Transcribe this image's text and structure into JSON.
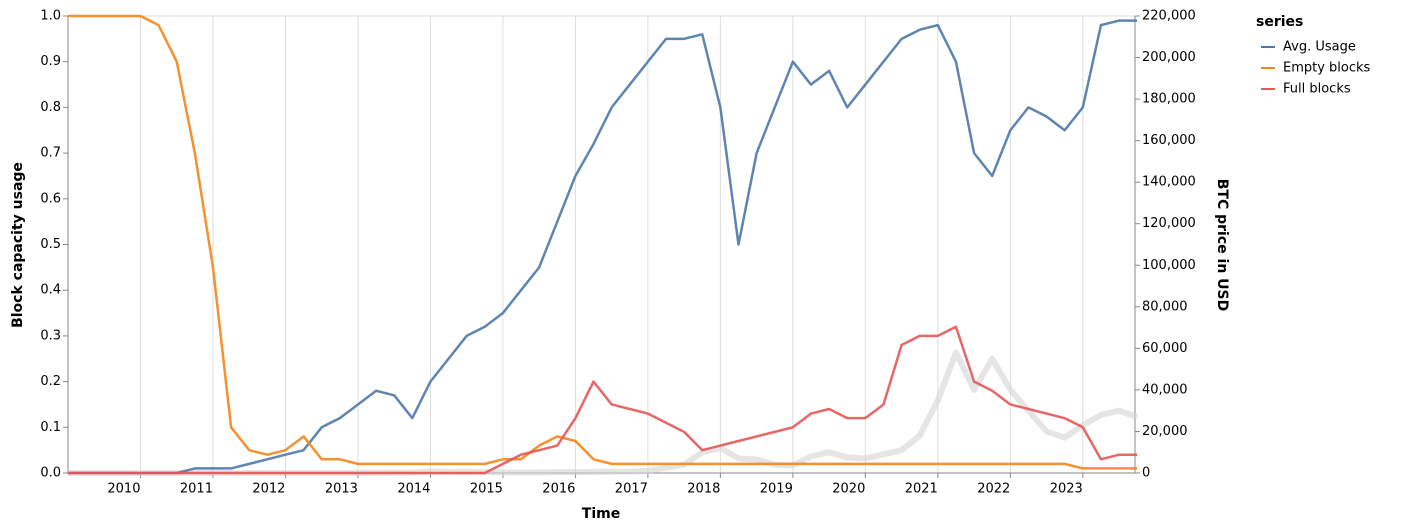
{
  "chart_data": {
    "type": "line",
    "x_label": "Time",
    "y_label": "Block capacity usage",
    "y2_label": "BTC price in USD",
    "legend_title": "series",
    "legend_position": "right",
    "grid": "x",
    "xlim": [
      2009,
      2023.72
    ],
    "xticks": [
      2010,
      2011,
      2012,
      2013,
      2014,
      2015,
      2016,
      2017,
      2018,
      2019,
      2020,
      2021,
      2022,
      2023
    ],
    "ylim": [
      0,
      1
    ],
    "yticks": [
      {
        "value": 0,
        "label": "0.0"
      },
      0.1,
      0.2,
      0.3,
      0.4,
      0.5,
      0.6,
      0.7,
      0.8,
      0.9,
      {
        "value": 1,
        "label": "1.0"
      }
    ],
    "y2lim": [
      0,
      220000
    ],
    "y2ticks": [
      0,
      {
        "value": 20000,
        "label": "20,000"
      },
      {
        "value": 40000,
        "label": "40,000"
      },
      {
        "value": 60000,
        "label": "60,000"
      },
      {
        "value": 80000,
        "label": "80,000"
      },
      {
        "value": 100000,
        "label": "100,000"
      },
      {
        "value": 120000,
        "label": "120,000"
      },
      {
        "value": 140000,
        "label": "140,000"
      },
      {
        "value": 160000,
        "label": "160,000"
      },
      {
        "value": 180000,
        "label": "180,000"
      },
      {
        "value": 200000,
        "label": "200,000"
      },
      {
        "value": 220000,
        "label": "220,000"
      }
    ],
    "x": [
      2009,
      2009.25,
      2009.5,
      2009.75,
      2010,
      2010.25,
      2010.5,
      2010.75,
      2011,
      2011.25,
      2011.5,
      2011.75,
      2012,
      2012.25,
      2012.5,
      2012.75,
      2013,
      2013.25,
      2013.5,
      2013.75,
      2014,
      2014.25,
      2014.5,
      2014.75,
      2015,
      2015.25,
      2015.5,
      2015.75,
      2016,
      2016.25,
      2016.5,
      2016.75,
      2017,
      2017.25,
      2017.5,
      2017.75,
      2018,
      2018.25,
      2018.5,
      2018.75,
      2019,
      2019.25,
      2019.5,
      2019.75,
      2020,
      2020.25,
      2020.5,
      2020.75,
      2021,
      2021.25,
      2021.5,
      2021.75,
      2022,
      2022.25,
      2022.5,
      2022.75,
      2023,
      2023.25,
      2023.5,
      2023.75
    ],
    "series": [
      {
        "color": "#d3d3d3",
        "axis": "y2",
        "values": [
          0,
          0,
          0,
          0,
          0,
          0,
          0,
          0,
          0,
          0,
          0,
          0,
          0,
          0,
          0,
          0,
          50,
          100,
          100,
          200,
          800,
          500,
          600,
          400,
          250,
          250,
          250,
          400,
          400,
          500,
          650,
          700,
          1000,
          2500,
          4000,
          10000,
          12000,
          7000,
          6500,
          4000,
          3600,
          8000,
          10000,
          7500,
          7000,
          9000,
          11000,
          18000,
          35000,
          58000,
          40000,
          55000,
          40000,
          30000,
          20000,
          17000,
          23000,
          28000,
          30000,
          27000
        ]
      },
      {
        "name": "Avg. Usage",
        "color": "#4c78a8",
        "values": [
          0,
          0,
          0,
          0,
          0,
          0,
          0,
          0.01,
          0.01,
          0.01,
          0.02,
          0.03,
          0.04,
          0.05,
          0.1,
          0.12,
          0.15,
          0.18,
          0.17,
          0.12,
          0.2,
          0.25,
          0.3,
          0.32,
          0.35,
          0.4,
          0.45,
          0.55,
          0.65,
          0.72,
          0.8,
          0.85,
          0.9,
          0.95,
          0.95,
          0.96,
          0.8,
          0.5,
          0.7,
          0.8,
          0.9,
          0.85,
          0.88,
          0.8,
          0.85,
          0.9,
          0.95,
          0.97,
          0.98,
          0.9,
          0.7,
          0.65,
          0.75,
          0.8,
          0.78,
          0.75,
          0.8,
          0.98,
          0.99,
          0.99
        ]
      },
      {
        "name": "Empty blocks",
        "color": "#f58518",
        "values": [
          1,
          1,
          1,
          1,
          1,
          0.98,
          0.9,
          0.7,
          0.45,
          0.1,
          0.05,
          0.04,
          0.05,
          0.08,
          0.03,
          0.03,
          0.02,
          0.02,
          0.02,
          0.02,
          0.02,
          0.02,
          0.02,
          0.02,
          0.03,
          0.03,
          0.06,
          0.08,
          0.07,
          0.03,
          0.02,
          0.02,
          0.02,
          0.02,
          0.02,
          0.02,
          0.02,
          0.02,
          0.02,
          0.02,
          0.02,
          0.02,
          0.02,
          0.02,
          0.02,
          0.02,
          0.02,
          0.02,
          0.02,
          0.02,
          0.02,
          0.02,
          0.02,
          0.02,
          0.02,
          0.02,
          0.01,
          0.01,
          0.01,
          0.01
        ]
      },
      {
        "name": "Full blocks",
        "color": "#e45756",
        "values": [
          0,
          0,
          0,
          0,
          0,
          0,
          0,
          0,
          0,
          0,
          0,
          0,
          0,
          0,
          0,
          0,
          0,
          0,
          0,
          0,
          0,
          0,
          0,
          0,
          0.02,
          0.04,
          0.05,
          0.06,
          0.12,
          0.2,
          0.15,
          0.14,
          0.13,
          0.11,
          0.09,
          0.05,
          0.06,
          0.07,
          0.08,
          0.09,
          0.1,
          0.13,
          0.14,
          0.12,
          0.12,
          0.15,
          0.28,
          0.3,
          0.3,
          0.32,
          0.2,
          0.18,
          0.15,
          0.14,
          0.13,
          0.12,
          0.1,
          0.03,
          0.04,
          0.04
        ]
      }
    ]
  }
}
